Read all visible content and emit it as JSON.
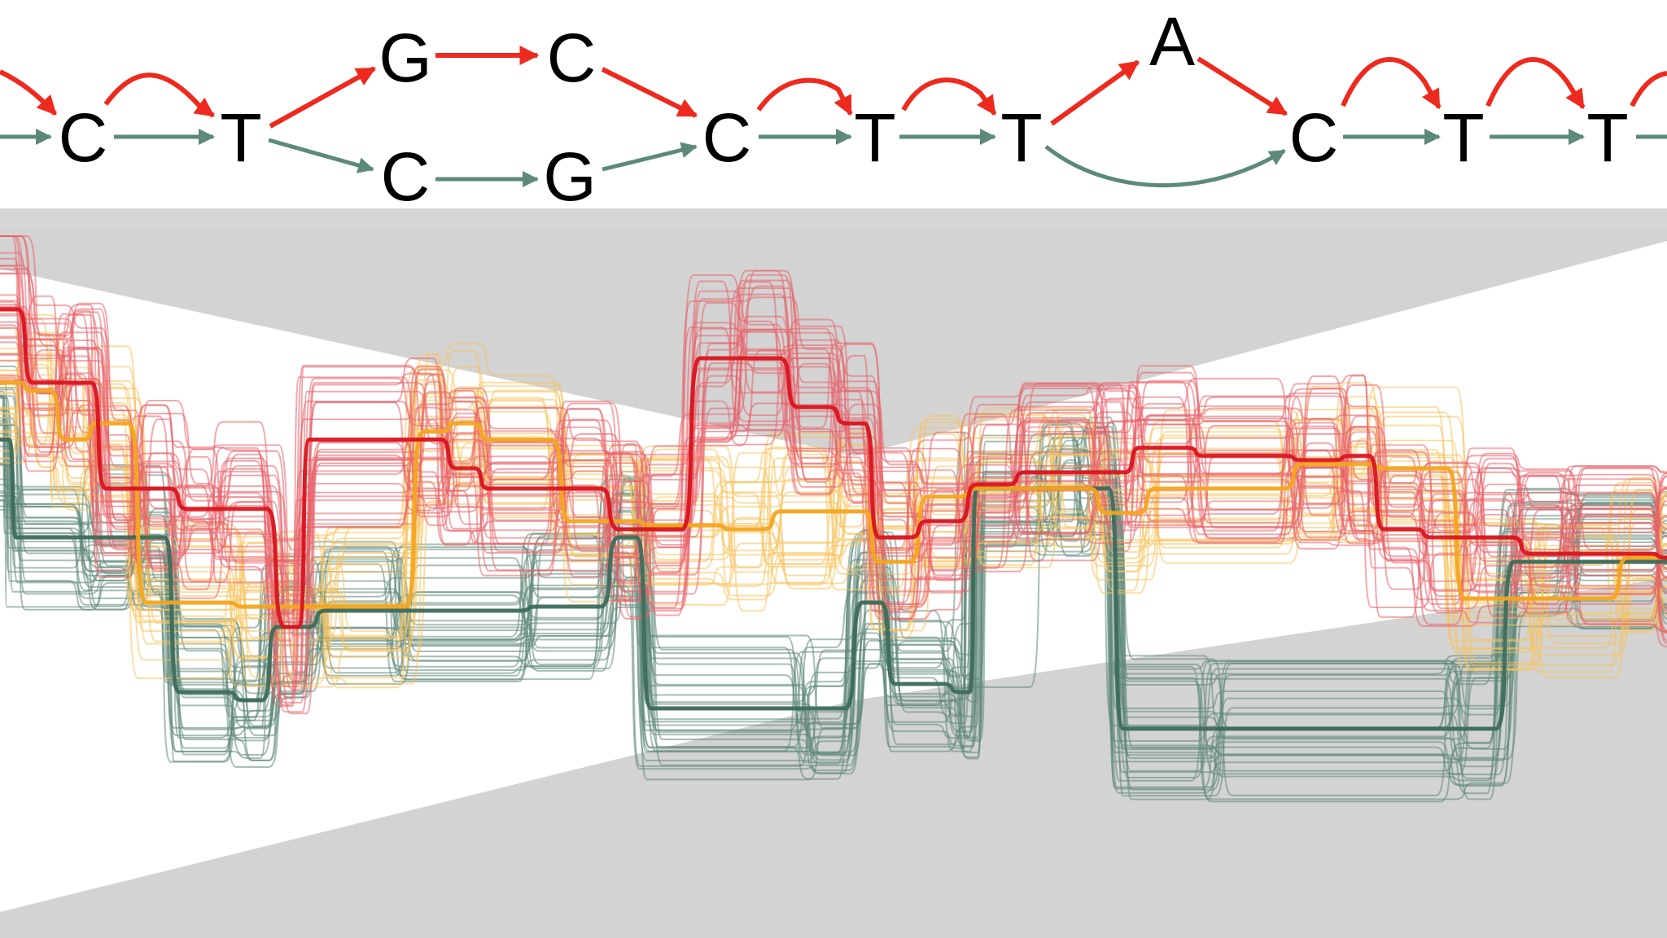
{
  "graph": {
    "bases": [
      {
        "id": "c1",
        "letter": "C"
      },
      {
        "id": "t1",
        "letter": "T"
      },
      {
        "id": "g_top",
        "letter": "G"
      },
      {
        "id": "c_top",
        "letter": "C"
      },
      {
        "id": "c_bot",
        "letter": "C"
      },
      {
        "id": "g_bot",
        "letter": "G"
      },
      {
        "id": "c2",
        "letter": "C"
      },
      {
        "id": "t2",
        "letter": "T"
      },
      {
        "id": "t3",
        "letter": "T"
      },
      {
        "id": "a",
        "letter": "A"
      },
      {
        "id": "c3",
        "letter": "C"
      },
      {
        "id": "t4",
        "letter": "T"
      },
      {
        "id": "t5",
        "letter": "T"
      }
    ],
    "colors": {
      "red_path": "#ee2a1f",
      "green_path": "#5d8a78",
      "node_text": "#000000"
    }
  },
  "paths": {
    "colors": {
      "red": "#d9141e",
      "orange": "#f3a51e",
      "green": "#3d6b5b",
      "red_light": "#e8626a",
      "orange_light": "#f7c25c",
      "green_light": "#5f8878"
    },
    "zoom_fill": "#d3d3d3"
  }
}
